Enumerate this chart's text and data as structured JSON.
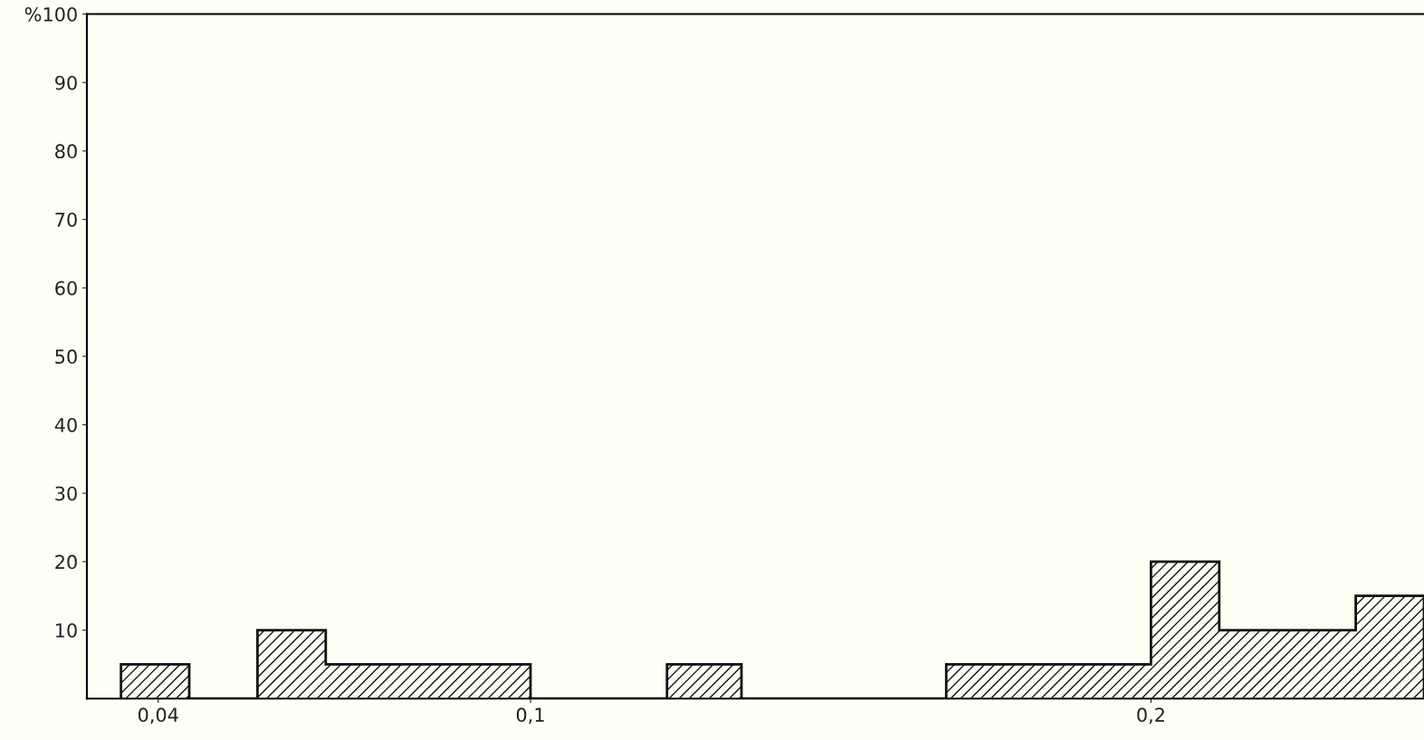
{
  "chart_data": {
    "type": "histogram",
    "bins": [
      0.034,
      0.045,
      0.056,
      0.067,
      0.078,
      0.089,
      0.1,
      0.111,
      0.122,
      0.134,
      0.145,
      0.156,
      0.167,
      0.178,
      0.189,
      0.2,
      0.211,
      0.222,
      0.233,
      0.244
    ],
    "values": [
      5,
      0,
      10,
      5,
      5,
      5,
      0,
      0,
      5,
      0,
      0,
      0,
      5,
      5,
      5,
      20,
      10,
      10,
      15
    ],
    "color": "#111111",
    "xlim": [
      0.0285,
      0.244
    ],
    "xticks": [
      {
        "value": 0.04,
        "label": "0,04"
      },
      {
        "value": 0.1,
        "label": "0,1"
      },
      {
        "value": 0.2,
        "label": "0,2"
      }
    ],
    "ylim": [
      0,
      100
    ],
    "yticks": [
      10,
      20,
      30,
      40,
      50,
      60,
      70,
      80,
      90,
      {
        "value": 100,
        "label": "%100"
      }
    ],
    "grid": false
  }
}
